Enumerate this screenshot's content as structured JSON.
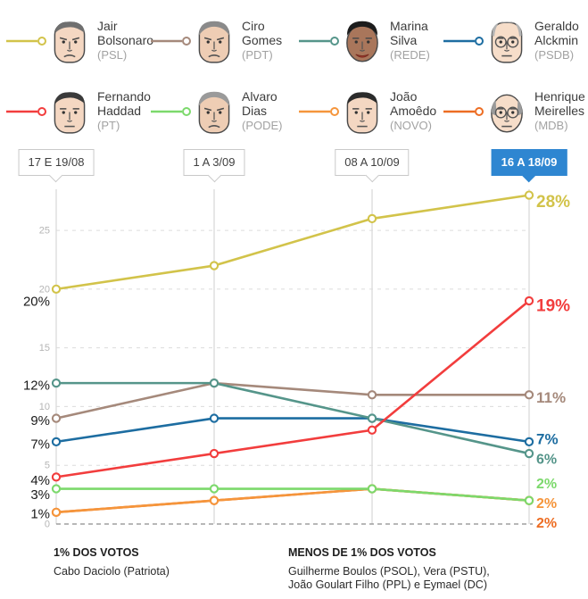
{
  "colors": {
    "highlight_blue": "#2e86d1",
    "grid_light": "#dcdcdc",
    "grid_vertical": "#cfcfcf",
    "zero_line": "#8c8c8c",
    "axis_tick_text": "#b5b5b5",
    "value_label_dark": "#1a1a1a"
  },
  "legend": {
    "items": [
      {
        "id": "jair-bolsonaro",
        "icon": "face-jair-bolsonaro",
        "name_lines": [
          "Jair",
          "Bolsonaro"
        ],
        "party": "(PSL)",
        "color": "#d2c34a",
        "face": {
          "shape": "square",
          "skin": "#f4d7c2",
          "hair": "comb",
          "hair_color": "#6f6f6f",
          "glasses": false,
          "mouth": "frown"
        }
      },
      {
        "id": "ciro-gomes",
        "icon": "face-ciro-gomes",
        "name_lines": [
          "Ciro",
          "Gomes"
        ],
        "party": "(PDT)",
        "color": "#a5897b",
        "face": {
          "shape": "square",
          "skin": "#eecdb4",
          "hair": "full",
          "hair_color": "#8a8a8a",
          "glasses": false,
          "mouth": "frown"
        }
      },
      {
        "id": "marina-silva",
        "icon": "face-marina-silva",
        "name_lines": [
          "Marina",
          "Silva"
        ],
        "party": "(REDE)",
        "color": "#55958a",
        "face": {
          "shape": "round",
          "skin": "#a9765b",
          "hair": "full",
          "hair_color": "#1c1c1c",
          "glasses": false,
          "mouth": "smile"
        }
      },
      {
        "id": "geraldo-alckmin",
        "icon": "face-geraldo-alckmin",
        "name_lines": [
          "Geraldo",
          "Alckmin"
        ],
        "party": "(PSDB)",
        "color": "#1d6da1",
        "face": {
          "shape": "square",
          "skin": "#f6ddc9",
          "hair": "receding",
          "hair_color": "#b3b3b3",
          "glasses": true,
          "mouth": "flat"
        }
      },
      {
        "id": "fernando-haddad",
        "icon": "face-fernando-haddad",
        "name_lines": [
          "Fernando",
          "Haddad"
        ],
        "party": "(PT)",
        "color": "#f23d3d",
        "face": {
          "shape": "square",
          "skin": "#f4d7c2",
          "hair": "comb",
          "hair_color": "#3a3a3a",
          "glasses": false,
          "mouth": "flat"
        }
      },
      {
        "id": "alvaro-dias",
        "icon": "face-alvaro-dias",
        "name_lines": [
          "Alvaro",
          "Dias"
        ],
        "party": "(PODE)",
        "color": "#7cd96c",
        "face": {
          "shape": "square",
          "skin": "#eecdb4",
          "hair": "full",
          "hair_color": "#9a9a9a",
          "glasses": false,
          "mouth": "frown"
        }
      },
      {
        "id": "joao-amoedo",
        "icon": "face-joao-amoedo",
        "name_lines": [
          "João",
          "Amoêdo"
        ],
        "party": "(NOVO)",
        "color": "#f5953b",
        "face": {
          "shape": "square",
          "skin": "#f4d7c2",
          "hair": "comb",
          "hair_color": "#2b2b2b",
          "glasses": false,
          "mouth": "flat"
        }
      },
      {
        "id": "henrique-meirelles",
        "icon": "face-henrique-meirelles",
        "name_lines": [
          "Henrique",
          "Meirelles"
        ],
        "party": "(MDB)",
        "color": "#ed6d23",
        "face": {
          "shape": "round",
          "skin": "#f6ddc9",
          "hair": "side",
          "hair_color": "#9a9a9a",
          "glasses": true,
          "mouth": "flat"
        }
      }
    ]
  },
  "chart_data": {
    "type": "line",
    "x": [
      "17 E 19/08",
      "1 A 3/09",
      "08 A 10/09",
      "16 A 18/09"
    ],
    "selected_x_index": 3,
    "ylim": [
      0,
      29
    ],
    "yticks": [
      0,
      5,
      10,
      15,
      20,
      25
    ],
    "grid": true,
    "legend_position": "top",
    "series": [
      {
        "name": "Jair Bolsonaro",
        "party": "PSL",
        "color": "#d2c34a",
        "values": [
          20,
          22,
          26,
          28
        ],
        "left_label": "20%",
        "right_label": "28%"
      },
      {
        "name": "Ciro Gomes",
        "party": "PDT",
        "color": "#a5897b",
        "values": [
          9,
          12,
          11,
          11
        ],
        "left_label": "9%",
        "right_label": "11%"
      },
      {
        "name": "Marina Silva",
        "party": "REDE",
        "color": "#55958a",
        "values": [
          12,
          12,
          9,
          6
        ],
        "left_label": "12%",
        "right_label": "6%"
      },
      {
        "name": "Geraldo Alckmin",
        "party": "PSDB",
        "color": "#1d6da1",
        "values": [
          7,
          9,
          9,
          7
        ],
        "left_label": "7%",
        "right_label": "7%"
      },
      {
        "name": "Fernando Haddad",
        "party": "PT",
        "color": "#f23d3d",
        "values": [
          4,
          6,
          8,
          19
        ],
        "left_label": "4%",
        "right_label": "19%"
      },
      {
        "name": "Alvaro Dias",
        "party": "PODE",
        "color": "#7cd96c",
        "values": [
          3,
          3,
          3,
          2
        ],
        "left_label": "3%",
        "right_label": "2%"
      },
      {
        "name": "João Amoêdo",
        "party": "NOVO",
        "color": "#f5953b",
        "values": [
          1,
          2,
          3,
          2
        ],
        "left_label": "1%",
        "right_label": "2%"
      },
      {
        "name": "Henrique Meirelles",
        "party": "MDB",
        "color": "#ed6d23",
        "values": [
          1,
          2,
          3,
          2
        ],
        "left_label": null,
        "right_label": "2%"
      }
    ]
  },
  "footnotes": {
    "one_percent": {
      "title": "1% DOS VOTOS",
      "names": "Cabo Daciolo (Patriota)"
    },
    "less_than_one_percent": {
      "title": "MENOS DE 1% DOS VOTOS",
      "lines": [
        "Guilherme Boulos (PSOL), Vera (PSTU),",
        "João Goulart Filho (PPL) e Eymael (DC)"
      ]
    }
  }
}
